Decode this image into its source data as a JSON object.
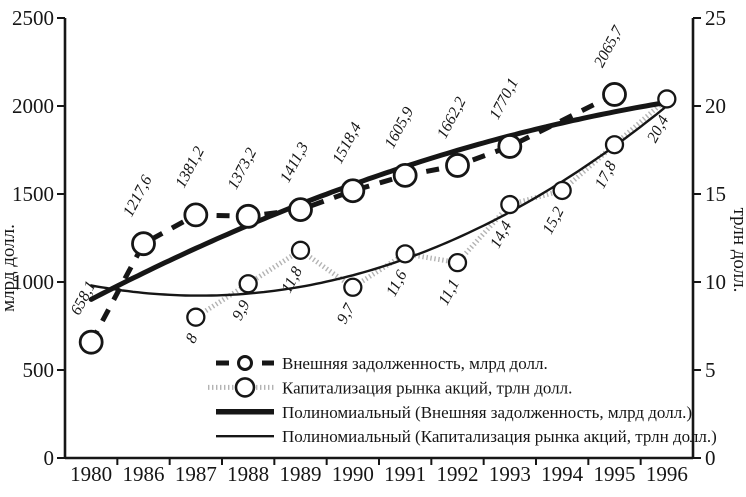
{
  "figure": {
    "background": "#ffffff",
    "ink": "#161616",
    "dotted_series_color": "#b3b3b3"
  },
  "chart_data": {
    "type": "line",
    "title": "",
    "categories": [
      "1980",
      "1986",
      "1987",
      "1988",
      "1989",
      "1990",
      "1991",
      "1992",
      "1993",
      "1994",
      "1995",
      "1996"
    ],
    "left_axis": {
      "title": "млрд долл.",
      "min": 0,
      "max": 2500,
      "ticks": [
        0,
        500,
        1000,
        1500,
        2000,
        2500
      ],
      "tick_labels": [
        "0",
        "500",
        "1000",
        "1500",
        "2000",
        "2500"
      ]
    },
    "right_axis": {
      "title": "трлн долл.",
      "min": 0,
      "max": 25,
      "ticks": [
        0,
        5,
        10,
        15,
        20,
        25
      ],
      "tick_labels": [
        "0",
        "5",
        "10",
        "15",
        "20",
        "25"
      ]
    },
    "grid": false,
    "legend_position": "inside-bottom-center",
    "series": [
      {
        "name": "Внешняя задолженность, млрд долл.",
        "axis": "left",
        "style": "dashed-circles",
        "values": [
          658.1,
          1217.6,
          1381.2,
          1373.2,
          1411.3,
          1518.4,
          1605.9,
          1662.2,
          1770.1,
          null,
          2065.7,
          null
        ],
        "point_labels": [
          "658,1",
          "1217,6",
          "1381,2",
          "1373,2",
          "1411,3",
          "1518,4",
          "1605,9",
          "1662,2",
          "1770,1",
          null,
          "2065,7",
          null
        ]
      },
      {
        "name": "Капитализация рынка акций, трлн долл.",
        "axis": "right",
        "style": "dotted-circles",
        "values": [
          null,
          null,
          8,
          9.9,
          11.8,
          9.7,
          11.6,
          11.1,
          14.4,
          15.2,
          17.8,
          20.4
        ],
        "point_labels": [
          null,
          null,
          "8",
          "9,9",
          "11,8",
          "9,7",
          "11,6",
          "11,1",
          "14,4",
          "15,2",
          "17,8",
          "20,4"
        ]
      }
    ],
    "trendlines": [
      {
        "name": "Полиномиальный (Внешняя задолженность, млрд долл.)",
        "series": 0,
        "degree": 2,
        "style": "thick"
      },
      {
        "name": "Полиномиальный (Капитализация рынка акций, трлн долл.)",
        "series": 1,
        "degree": 2,
        "style": "thin"
      }
    ]
  }
}
